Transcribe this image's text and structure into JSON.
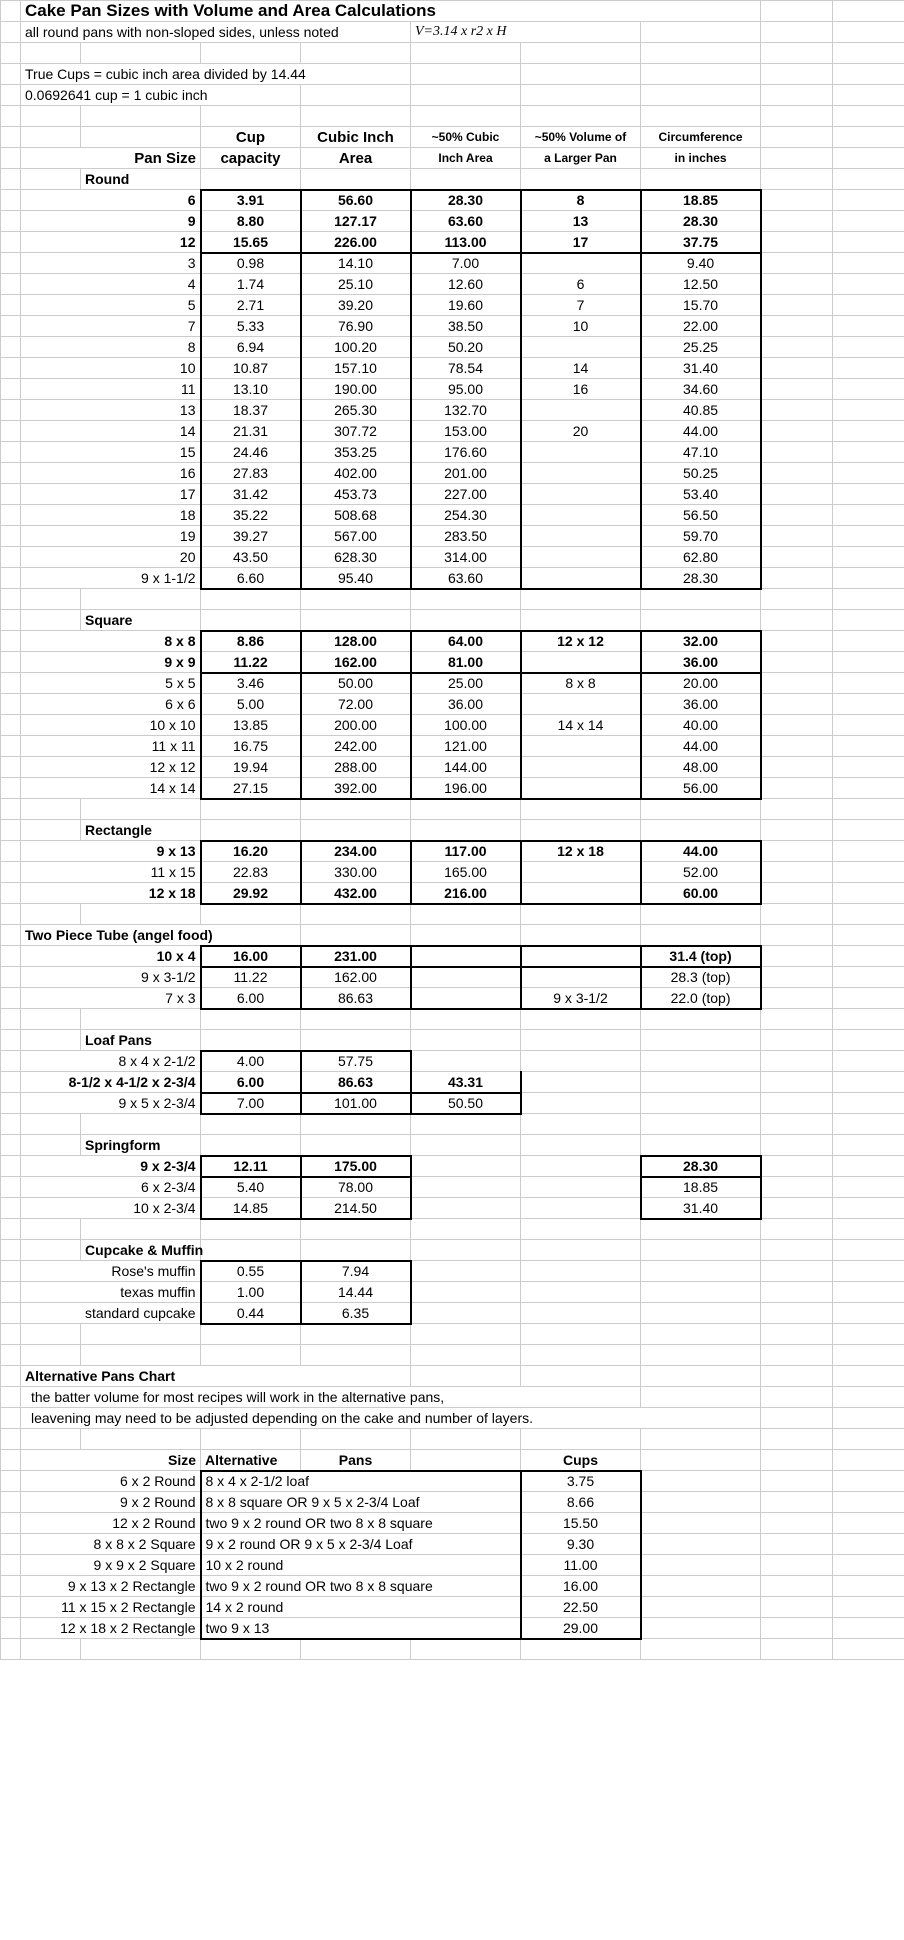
{
  "title": "Cake Pan Sizes with Volume and Area Calculations",
  "subtitle_a": "all round pans with non-sloped sides, unless noted",
  "subtitle_b": "V=3.14 x r2 x H",
  "notes": {
    "n1": "True Cups = cubic inch area divided by 14.44",
    "n2": "0.0692641 cup = 1 cubic inch"
  },
  "headers": {
    "pan_size": "Pan Size",
    "cup1": "Cup",
    "cup2": "capacity",
    "ci1": "Cubic Inch",
    "ci2": "Area",
    "fifty_ci1": "~50% Cubic",
    "fifty_ci2": "Inch Area",
    "fifty_vol1": "~50% Volume of",
    "fifty_vol2": "a Larger Pan",
    "circ1": "Circumference",
    "circ2": "in inches"
  },
  "sections": {
    "round": "Round",
    "square": "Square",
    "rect": "Rectangle",
    "tube": "Two Piece Tube (angel food)",
    "loaf": "Loaf Pans",
    "spring": "Springform",
    "cup": "Cupcake & Muffin"
  },
  "round": [
    {
      "s": "6",
      "c": "3.91",
      "ci": "56.60",
      "f": "28.30",
      "v": "8",
      "cr": "18.85",
      "b": true,
      "t": true
    },
    {
      "s": "9",
      "c": "8.80",
      "ci": "127.17",
      "f": "63.60",
      "v": "13",
      "cr": "28.30",
      "b": true
    },
    {
      "s": "12",
      "c": "15.65",
      "ci": "226.00",
      "f": "113.00",
      "v": "17",
      "cr": "37.75",
      "b": true,
      "bb": true
    },
    {
      "s": "3",
      "c": "0.98",
      "ci": "14.10",
      "f": "7.00",
      "v": "",
      "cr": "9.40"
    },
    {
      "s": "4",
      "c": "1.74",
      "ci": "25.10",
      "f": "12.60",
      "v": "6",
      "cr": "12.50"
    },
    {
      "s": "5",
      "c": "2.71",
      "ci": "39.20",
      "f": "19.60",
      "v": "7",
      "cr": "15.70"
    },
    {
      "s": "7",
      "c": "5.33",
      "ci": "76.90",
      "f": "38.50",
      "v": "10",
      "cr": "22.00"
    },
    {
      "s": "8",
      "c": "6.94",
      "ci": "100.20",
      "f": "50.20",
      "v": "",
      "cr": "25.25"
    },
    {
      "s": "10",
      "c": "10.87",
      "ci": "157.10",
      "f": "78.54",
      "v": "14",
      "cr": "31.40"
    },
    {
      "s": "11",
      "c": "13.10",
      "ci": "190.00",
      "f": "95.00",
      "v": "16",
      "cr": "34.60"
    },
    {
      "s": "13",
      "c": "18.37",
      "ci": "265.30",
      "f": "132.70",
      "v": "",
      "cr": "40.85"
    },
    {
      "s": "14",
      "c": "21.31",
      "ci": "307.72",
      "f": "153.00",
      "v": "20",
      "cr": "44.00"
    },
    {
      "s": "15",
      "c": "24.46",
      "ci": "353.25",
      "f": "176.60",
      "v": "",
      "cr": "47.10"
    },
    {
      "s": "16",
      "c": "27.83",
      "ci": "402.00",
      "f": "201.00",
      "v": "",
      "cr": "50.25"
    },
    {
      "s": "17",
      "c": "31.42",
      "ci": "453.73",
      "f": "227.00",
      "v": "",
      "cr": "53.40"
    },
    {
      "s": "18",
      "c": "35.22",
      "ci": "508.68",
      "f": "254.30",
      "v": "",
      "cr": "56.50"
    },
    {
      "s": "19",
      "c": "39.27",
      "ci": "567.00",
      "f": "283.50",
      "v": "",
      "cr": "59.70"
    },
    {
      "s": "20",
      "c": "43.50",
      "ci": "628.30",
      "f": "314.00",
      "v": "",
      "cr": "62.80"
    },
    {
      "s": "9 x 1-1/2",
      "c": "6.60",
      "ci": "95.40",
      "f": "63.60",
      "v": "",
      "cr": "28.30",
      "bb": true
    }
  ],
  "square": [
    {
      "s": "8 x 8",
      "c": "8.86",
      "ci": "128.00",
      "f": "64.00",
      "v": "12 x 12",
      "cr": "32.00",
      "b": true,
      "t": true
    },
    {
      "s": "9 x 9",
      "c": "11.22",
      "ci": "162.00",
      "f": "81.00",
      "v": "",
      "cr": "36.00",
      "b": true,
      "bb": true
    },
    {
      "s": "5 x 5",
      "c": "3.46",
      "ci": "50.00",
      "f": "25.00",
      "v": "8 x 8",
      "cr": "20.00"
    },
    {
      "s": "6 x 6",
      "c": "5.00",
      "ci": "72.00",
      "f": "36.00",
      "v": "",
      "cr": "36.00"
    },
    {
      "s": "10 x 10",
      "c": "13.85",
      "ci": "200.00",
      "f": "100.00",
      "v": "14 x 14",
      "cr": "40.00"
    },
    {
      "s": "11 x 11",
      "c": "16.75",
      "ci": "242.00",
      "f": "121.00",
      "v": "",
      "cr": "44.00"
    },
    {
      "s": "12 x 12",
      "c": "19.94",
      "ci": "288.00",
      "f": "144.00",
      "v": "",
      "cr": "48.00"
    },
    {
      "s": "14 x 14",
      "c": "27.15",
      "ci": "392.00",
      "f": "196.00",
      "v": "",
      "cr": "56.00",
      "bb": true
    }
  ],
  "rect": [
    {
      "s": "9 x 13",
      "c": "16.20",
      "ci": "234.00",
      "f": "117.00",
      "v": "12 x 18",
      "cr": "44.00",
      "b": true,
      "t": true
    },
    {
      "s": "11 x 15",
      "c": "22.83",
      "ci": "330.00",
      "f": "165.00",
      "v": "",
      "cr": "52.00"
    },
    {
      "s": "12 x 18",
      "c": "29.92",
      "ci": "432.00",
      "f": "216.00",
      "v": "",
      "cr": "60.00",
      "b": true,
      "bb": true
    }
  ],
  "tube": [
    {
      "s": "10 x 4",
      "c": "16.00",
      "ci": "231.00",
      "f": "",
      "v": "",
      "cr": "31.4 (top)",
      "b": true,
      "t": true,
      "bb": true
    },
    {
      "s": "9 x 3-1/2",
      "c": "11.22",
      "ci": "162.00",
      "f": "",
      "v": "",
      "cr": "28.3 (top)"
    },
    {
      "s": "7 x 3",
      "c": "6.00",
      "ci": "86.63",
      "f": "",
      "v": "9 x 3-1/2",
      "cr": "22.0 (top)",
      "bb": true
    }
  ],
  "loaf": [
    {
      "s": "8 x 4 x 2-1/2",
      "c": "4.00",
      "ci": "57.75",
      "f": "",
      "v": "",
      "cr": "",
      "t": true
    },
    {
      "s": "8-1/2 x 4-1/2 x 2-3/4",
      "c": "6.00",
      "ci": "86.63",
      "f": "43.31",
      "v": "",
      "cr": "",
      "b": true,
      "bb": true
    },
    {
      "s": "9 x 5 x 2-3/4",
      "c": "7.00",
      "ci": "101.00",
      "f": "50.50",
      "v": "",
      "cr": "",
      "bb": true
    }
  ],
  "spring": [
    {
      "s": "9 x 2-3/4",
      "c": "12.11",
      "ci": "175.00",
      "f": "",
      "v": "",
      "cr": "28.30",
      "b": true,
      "t": true,
      "bb": true
    },
    {
      "s": "6 x 2-3/4",
      "c": "5.40",
      "ci": "78.00",
      "f": "",
      "v": "",
      "cr": "18.85"
    },
    {
      "s": "10 x 2-3/4",
      "c": "14.85",
      "ci": "214.50",
      "f": "",
      "v": "",
      "cr": "31.40",
      "bb": true
    }
  ],
  "cup": [
    {
      "s": "Rose's muffin",
      "c": "0.55",
      "ci": "7.94",
      "t": true
    },
    {
      "s": "texas muffin",
      "c": "1.00",
      "ci": "14.44"
    },
    {
      "s": "standard cupcake",
      "c": "0.44",
      "ci": "6.35",
      "bb": true
    }
  ],
  "alt": {
    "title": "Alternative Pans Chart",
    "sub1": "the batter volume for most recipes will work in the alternative pans,",
    "sub2": "leavening may need to be adjusted depending on the cake and number of layers.",
    "h_size": "Size",
    "h_alt": "Alternative",
    "h_pans": "Pans",
    "h_cups": "Cups",
    "rows": [
      {
        "s": "6 x 2 Round",
        "a": "8 x 4 x 2-1/2 loaf",
        "c": "3.75"
      },
      {
        "s": "9 x 2 Round",
        "a": "8 x 8 square OR 9 x 5 x 2-3/4  Loaf",
        "c": "8.66"
      },
      {
        "s": "12 x 2 Round",
        "a": "two 9 x 2 round OR two 8 x 8 square",
        "c": "15.50"
      },
      {
        "s": "8 x 8 x 2 Square",
        "a": "9 x 2 round OR 9 x 5 x 2-3/4  Loaf",
        "c": "9.30"
      },
      {
        "s": "9 x 9 x 2 Square",
        "a": "10 x 2 round",
        "c": "11.00"
      },
      {
        "s": "9 x 13 x 2 Rectangle",
        "a": "two 9 x 2 round OR two 8 x 8 square",
        "c": "16.00"
      },
      {
        "s": "11 x 15 x 2 Rectangle",
        "a": "14 x 2 round",
        "c": "22.50"
      },
      {
        "s": "12 x 18 x 2 Rectangle",
        "a": "two 9 x 13",
        "c": "29.00"
      }
    ]
  }
}
